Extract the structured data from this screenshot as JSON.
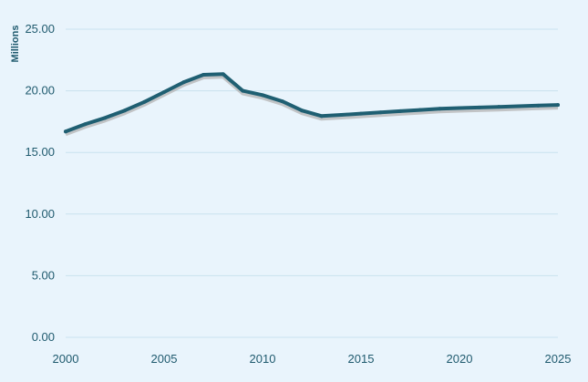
{
  "chart_data": {
    "type": "line",
    "title": "",
    "xlabel": "",
    "ylabel": "Millions",
    "xlim": [
      2000,
      2025
    ],
    "ylim": [
      0,
      25
    ],
    "grid": true,
    "legend": "none",
    "x_ticks": [
      "2000",
      "2005",
      "2010",
      "2015",
      "2020",
      "2025"
    ],
    "y_ticks": [
      "0.00",
      "5.00",
      "10.00",
      "15.00",
      "20.00",
      "25.00"
    ],
    "series": [
      {
        "color": "#1f5f72",
        "shadow_color": "#b8b8b8",
        "x": [
          2000,
          2001,
          2002,
          2003,
          2004,
          2005,
          2006,
          2007,
          2008,
          2009,
          2010,
          2011,
          2012,
          2013,
          2014,
          2015,
          2016,
          2017,
          2018,
          2019,
          2020,
          2021,
          2022,
          2023,
          2024,
          2025
        ],
        "y": [
          16.7,
          17.3,
          17.8,
          18.4,
          19.1,
          19.9,
          20.7,
          21.3,
          21.35,
          20.0,
          19.65,
          19.15,
          18.4,
          17.95,
          18.05,
          18.15,
          18.25,
          18.35,
          18.45,
          18.55,
          18.6,
          18.65,
          18.7,
          18.75,
          18.8,
          18.85
        ]
      }
    ]
  }
}
